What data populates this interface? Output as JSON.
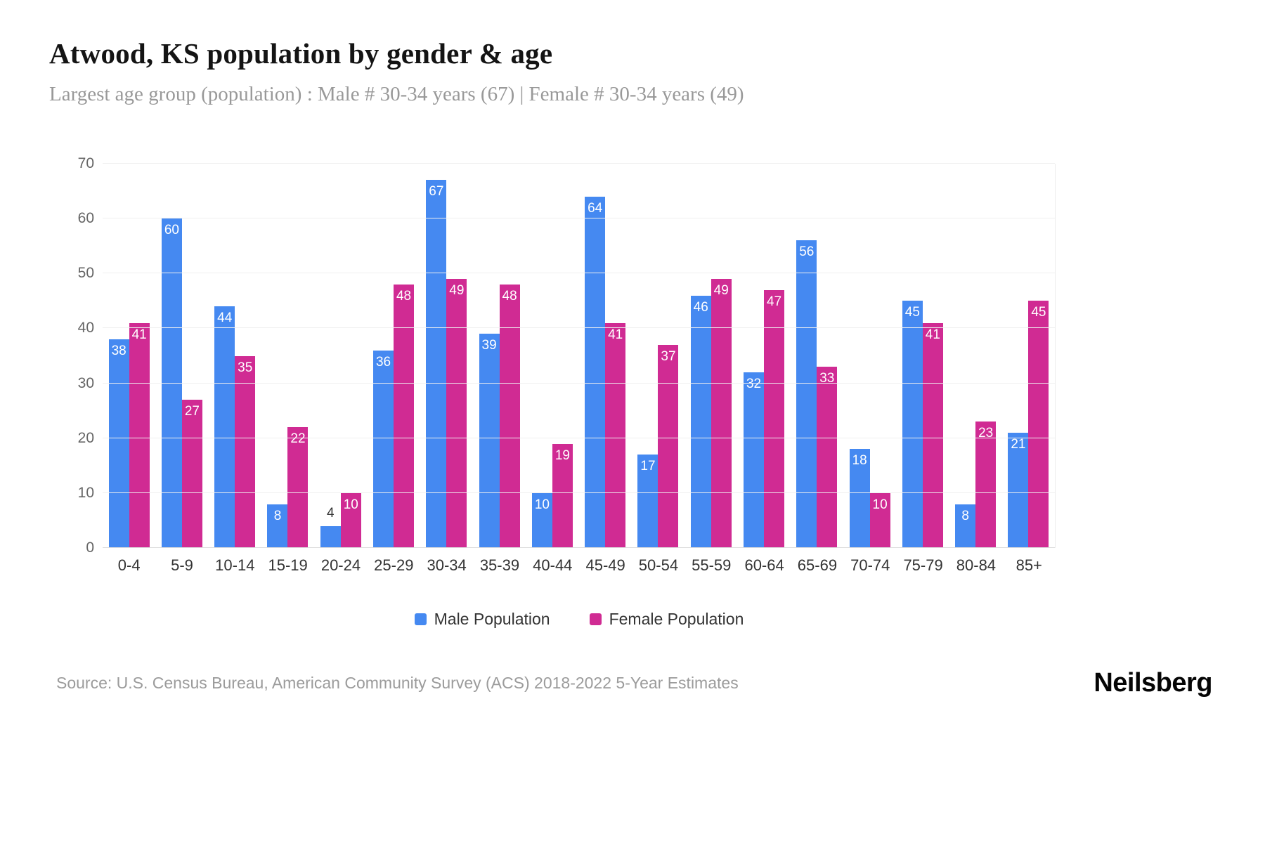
{
  "header": {
    "title": "Atwood, KS population by gender & age",
    "subtitle": "Largest age group (population) : Male # 30-34 years (67) | Female # 30-34 years (49)"
  },
  "chart_data": {
    "type": "bar",
    "title": "Atwood, KS population by gender & age",
    "categories": [
      "0-4",
      "5-9",
      "10-14",
      "15-19",
      "20-24",
      "25-29",
      "30-34",
      "35-39",
      "40-44",
      "45-49",
      "50-54",
      "55-59",
      "60-64",
      "65-69",
      "70-74",
      "75-79",
      "80-84",
      "85+"
    ],
    "series": [
      {
        "name": "Male Population",
        "color": "#4589f1",
        "values": [
          38,
          60,
          44,
          8,
          4,
          36,
          67,
          39,
          10,
          64,
          17,
          46,
          32,
          56,
          18,
          45,
          8,
          21
        ]
      },
      {
        "name": "Female Population",
        "color": "#d02b93",
        "values": [
          41,
          27,
          35,
          22,
          10,
          48,
          49,
          48,
          19,
          41,
          37,
          49,
          47,
          33,
          10,
          41,
          23,
          45
        ]
      }
    ],
    "xlabel": "",
    "ylabel": "",
    "ylim": [
      0,
      70
    ],
    "yticks": [
      0,
      10,
      20,
      30,
      40,
      50,
      60,
      70
    ],
    "grid": true,
    "legend_position": "bottom",
    "label_outside_threshold": 6
  },
  "footer": {
    "source": "Source: U.S. Census Bureau, American Community Survey (ACS) 2018-2022 5-Year Estimates",
    "brand": "Neilsberg"
  }
}
